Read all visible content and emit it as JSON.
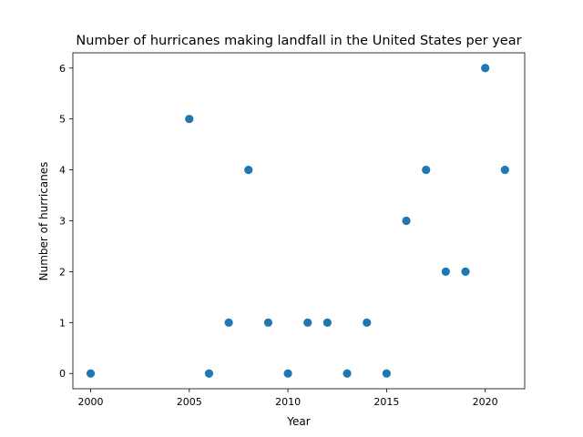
{
  "chart_data": {
    "type": "scatter",
    "title": "Number of hurricanes making landfall in the United States per year",
    "xlabel": "Year",
    "ylabel": "Number of hurricanes",
    "xlim": [
      1999.1,
      2022.0
    ],
    "ylim": [
      -0.3,
      6.3
    ],
    "xticks": [
      2000,
      2005,
      2010,
      2015,
      2020
    ],
    "yticks": [
      0,
      1,
      2,
      3,
      4,
      5,
      6
    ],
    "grid": false,
    "legend": "none",
    "marker_color": "#1f77b4",
    "points": [
      {
        "x": 2000,
        "y": 0
      },
      {
        "x": 2005,
        "y": 5
      },
      {
        "x": 2006,
        "y": 0
      },
      {
        "x": 2007,
        "y": 1
      },
      {
        "x": 2008,
        "y": 4
      },
      {
        "x": 2009,
        "y": 1
      },
      {
        "x": 2010,
        "y": 0
      },
      {
        "x": 2011,
        "y": 1
      },
      {
        "x": 2012,
        "y": 1
      },
      {
        "x": 2013,
        "y": 0
      },
      {
        "x": 2014,
        "y": 1
      },
      {
        "x": 2015,
        "y": 0
      },
      {
        "x": 2016,
        "y": 3
      },
      {
        "x": 2017,
        "y": 4
      },
      {
        "x": 2018,
        "y": 2
      },
      {
        "x": 2019,
        "y": 2
      },
      {
        "x": 2020,
        "y": 6
      },
      {
        "x": 2021,
        "y": 4
      }
    ]
  }
}
